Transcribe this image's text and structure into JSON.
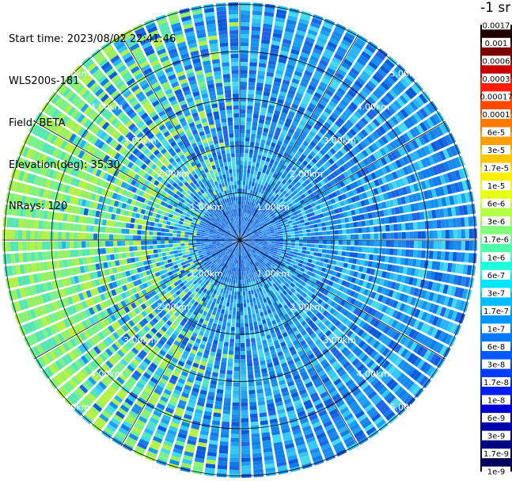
{
  "scan_info": {
    "start_time": "Start time: 2023/08/02 22:41:46",
    "instrument": "WLS200s-181",
    "field": "Field: BETA",
    "elevation": "Elevation(deg): 35.30",
    "nrays": "NRays: 120"
  },
  "range_rings": {
    "labels": [
      "1.00km",
      "2.00km",
      "3.00km",
      "4.00km",
      "5.00km"
    ],
    "ring_label_directions_deg": [
      -45,
      45,
      135,
      -135
    ]
  },
  "colorbar": {
    "title": "-1 sr",
    "labels": [
      "0.0017",
      "0.001",
      "0.0006",
      "0.0003",
      "0.00017",
      "0.0001",
      "6e-5",
      "3e-5",
      "1.7e-5",
      "1e-5",
      "6e-6",
      "3e-6",
      "1.7e-6",
      "1e-6",
      "6e-7",
      "3e-7",
      "1.7e-7",
      "1e-7",
      "6e-8",
      "3e-8",
      "1.7e-8",
      "1e-8",
      "6e-9",
      "3e-9",
      "1.7e-9",
      "1e-9"
    ],
    "colors": [
      "#1e0000",
      "#7a0000",
      "#c80000",
      "#ff1e00",
      "#ff4800",
      "#ff7800",
      "#ffa000",
      "#ffc800",
      "#fff000",
      "#e6ff14",
      "#b4ff46",
      "#82ff78",
      "#50ffaa",
      "#1effdc",
      "#00e6ff",
      "#00beff",
      "#0096ff",
      "#0078ff",
      "#005aff",
      "#003cff",
      "#001ef0",
      "#0000d2",
      "#0000aa",
      "#000082",
      "#00005a"
    ]
  },
  "map_colors": {
    "rings": "#000000",
    "spokes": "#000000",
    "labels": "#ffffff"
  }
}
